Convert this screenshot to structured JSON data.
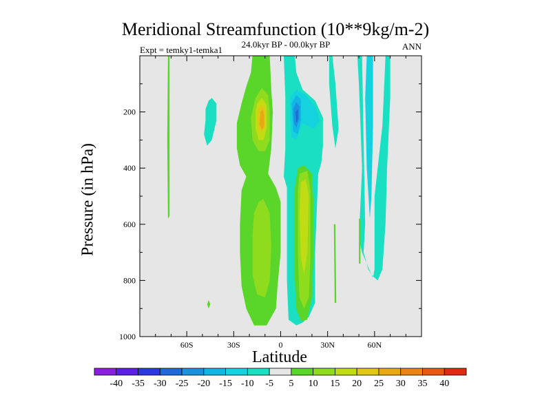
{
  "chart_data": {
    "type": "contour",
    "title": "Meridional Streamfunction (10**9kg/m-2)",
    "subtitle_left": "Expt = temky1-temka1",
    "subtitle_center": "24.0kyr BP - 00.0kyr BP",
    "subtitle_right": "ANN",
    "xlabel": "Latitude",
    "ylabel": "Pressure (in hPa)",
    "xlim": [
      -90,
      90
    ],
    "ylim": [
      1000,
      0
    ],
    "x_ticks": [
      {
        "value": -60,
        "label": "60S"
      },
      {
        "value": -30,
        "label": "30S"
      },
      {
        "value": 0,
        "label": "0"
      },
      {
        "value": 30,
        "label": "30N"
      },
      {
        "value": 60,
        "label": "60N"
      }
    ],
    "y_ticks": [
      {
        "value": 200,
        "label": "200"
      },
      {
        "value": 400,
        "label": "400"
      },
      {
        "value": 600,
        "label": "600"
      },
      {
        "value": 800,
        "label": "800"
      },
      {
        "value": 1000,
        "label": "1000"
      }
    ],
    "background_color": "#e6e6e6",
    "colorbar": {
      "labels": [
        "-40",
        "-35",
        "-30",
        "-25",
        "-20",
        "-15",
        "-10",
        "-5",
        "5",
        "10",
        "15",
        "20",
        "25",
        "30",
        "35",
        "40"
      ],
      "colors": [
        "#8a1ee0",
        "#5a1ee6",
        "#2a3ae0",
        "#1f6ad8",
        "#1a92de",
        "#12b6e4",
        "#14d2de",
        "#1adfc2",
        "#e6e6e6",
        "#5ad62a",
        "#8fdc1e",
        "#c2dc14",
        "#e0c814",
        "#e8a814",
        "#ea8414",
        "#e85a14",
        "#e02a14"
      ]
    },
    "features": [
      {
        "name": "positive-cell-20S-upper",
        "center_lat": -12,
        "center_p": 240,
        "peak": 30
      },
      {
        "name": "positive-cell-20S-lower",
        "center_lat": -12,
        "center_p": 650,
        "peak": 15
      },
      {
        "name": "negative-cell-10N-upper",
        "center_lat": 10,
        "center_p": 230,
        "peak": -25
      },
      {
        "name": "positive-cell-15N-mid",
        "center_lat": 15,
        "center_p": 580,
        "peak": 20
      },
      {
        "name": "negative-band-55N",
        "center_lat": 57,
        "center_p": 400,
        "peak": -10
      }
    ]
  }
}
